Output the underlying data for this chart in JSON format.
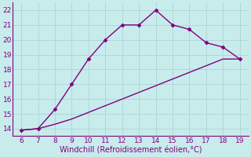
{
  "xlabel": "Windchill (Refroidissement éolien,°C)",
  "background_color": "#c8ecec",
  "grid_color": "#b0d8d8",
  "line_color": "#800080",
  "xlim": [
    5.5,
    19.5
  ],
  "ylim": [
    13.5,
    22.5
  ],
  "xticks": [
    6,
    7,
    8,
    9,
    10,
    11,
    12,
    13,
    14,
    15,
    16,
    17,
    18,
    19
  ],
  "yticks": [
    14,
    15,
    16,
    17,
    18,
    19,
    20,
    21,
    22
  ],
  "curve1_x": [
    6,
    7,
    8,
    9,
    10,
    11,
    12,
    13,
    14,
    15,
    16,
    17,
    18,
    19
  ],
  "curve1_y": [
    13.9,
    14.0,
    15.3,
    17.0,
    18.7,
    20.0,
    21.0,
    21.0,
    22.0,
    21.0,
    20.7,
    19.8,
    19.5,
    18.7
  ],
  "curve2_x": [
    6,
    7,
    8,
    9,
    10,
    11,
    12,
    13,
    14,
    15,
    16,
    17,
    18,
    19
  ],
  "curve2_y": [
    13.9,
    14.0,
    14.3,
    14.65,
    15.1,
    15.55,
    16.0,
    16.45,
    16.9,
    17.35,
    17.8,
    18.25,
    18.7,
    18.7
  ],
  "marker": "D",
  "markersize": 2.5,
  "linewidth": 1.0,
  "xlabel_fontsize": 7,
  "tick_fontsize": 6.5
}
